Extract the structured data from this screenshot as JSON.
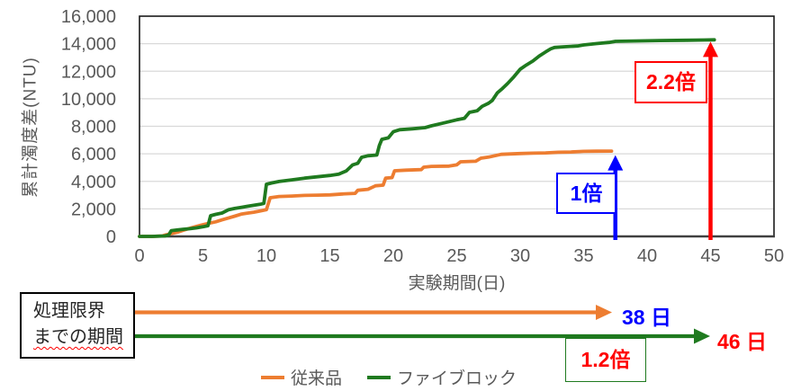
{
  "colors": {
    "orange": "#ED7D31",
    "green": "#1F7A1F",
    "blue": "#0000FF",
    "red": "#FF0000",
    "axis_text": "#595959",
    "grid": "#D9D9D9",
    "axis_line": "#1A1A1A",
    "zero_line": "#404040"
  },
  "chart_data": {
    "type": "line",
    "title": "",
    "xlabel": "実験期間(日)",
    "ylabel": "累計濁度差(NTU)",
    "xlim": [
      0,
      50
    ],
    "ylim": [
      0,
      16000
    ],
    "grid": "horizontal",
    "legend_position": "bottom",
    "x_ticks": [
      "0",
      "5",
      "10",
      "15",
      "20",
      "25",
      "30",
      "35",
      "40",
      "45",
      "50"
    ],
    "y_ticks": [
      {
        "value": 0,
        "label": "0"
      },
      {
        "value": 2000,
        "label": "2,000"
      },
      {
        "value": 4000,
        "label": "4,000"
      },
      {
        "value": 6000,
        "label": "6,000"
      },
      {
        "value": 8000,
        "label": "8,000"
      },
      {
        "value": 10000,
        "label": "10,000"
      },
      {
        "value": 12000,
        "label": "12,000"
      },
      {
        "value": 14000,
        "label": "14,000"
      },
      {
        "value": 16000,
        "label": "16,000"
      }
    ],
    "series": [
      {
        "name": "従来品",
        "color_key": "orange",
        "points": [
          [
            0,
            0
          ],
          [
            1,
            0
          ],
          [
            1.8,
            30
          ],
          [
            2,
            90
          ],
          [
            2.5,
            200
          ],
          [
            3,
            310
          ],
          [
            3.5,
            460
          ],
          [
            4,
            600
          ],
          [
            4.5,
            730
          ],
          [
            5,
            850
          ],
          [
            5.5,
            960
          ],
          [
            6,
            1060
          ],
          [
            6.5,
            1200
          ],
          [
            7,
            1330
          ],
          [
            7.5,
            1470
          ],
          [
            8,
            1610
          ],
          [
            8.5,
            1690
          ],
          [
            9,
            1760
          ],
          [
            9.5,
            1850
          ],
          [
            10,
            1940
          ],
          [
            10.3,
            2810
          ],
          [
            11,
            2900
          ],
          [
            12,
            2930
          ],
          [
            13,
            2980
          ],
          [
            14,
            3000
          ],
          [
            15,
            3020
          ],
          [
            16,
            3080
          ],
          [
            17,
            3130
          ],
          [
            17.2,
            3350
          ],
          [
            18,
            3420
          ],
          [
            18.6,
            3680
          ],
          [
            19.2,
            3720
          ],
          [
            19.4,
            4230
          ],
          [
            19.9,
            4270
          ],
          [
            20.1,
            4770
          ],
          [
            21,
            4810
          ],
          [
            22.2,
            4850
          ],
          [
            22.4,
            5030
          ],
          [
            23,
            5090
          ],
          [
            24.4,
            5110
          ],
          [
            25,
            5200
          ],
          [
            25.3,
            5420
          ],
          [
            26.5,
            5460
          ],
          [
            26.9,
            5680
          ],
          [
            27.5,
            5760
          ],
          [
            28.5,
            5960
          ],
          [
            30,
            6020
          ],
          [
            31,
            6050
          ],
          [
            32,
            6070
          ],
          [
            33,
            6110
          ],
          [
            34,
            6130
          ],
          [
            35,
            6180
          ],
          [
            36,
            6190
          ],
          [
            37.2,
            6200
          ]
        ]
      },
      {
        "name": "ファイブロック",
        "color_key": "green",
        "points": [
          [
            0,
            0
          ],
          [
            1,
            0
          ],
          [
            2,
            30
          ],
          [
            2.3,
            100
          ],
          [
            2.5,
            420
          ],
          [
            3,
            470
          ],
          [
            3.5,
            520
          ],
          [
            4,
            560
          ],
          [
            4.5,
            620
          ],
          [
            5,
            700
          ],
          [
            5.4,
            780
          ],
          [
            5.6,
            1500
          ],
          [
            6,
            1600
          ],
          [
            6.5,
            1700
          ],
          [
            7,
            1930
          ],
          [
            7.5,
            2030
          ],
          [
            8,
            2110
          ],
          [
            8.5,
            2190
          ],
          [
            9,
            2260
          ],
          [
            9.5,
            2330
          ],
          [
            9.8,
            2400
          ],
          [
            10,
            3790
          ],
          [
            10.4,
            3880
          ],
          [
            11,
            3990
          ],
          [
            12,
            4110
          ],
          [
            13,
            4230
          ],
          [
            14,
            4330
          ],
          [
            15,
            4430
          ],
          [
            15.7,
            4520
          ],
          [
            16.3,
            4760
          ],
          [
            16.8,
            5200
          ],
          [
            17.2,
            5310
          ],
          [
            17.5,
            5750
          ],
          [
            18,
            5860
          ],
          [
            18.7,
            5910
          ],
          [
            18.9,
            6600
          ],
          [
            19.1,
            7050
          ],
          [
            19.6,
            7160
          ],
          [
            20,
            7600
          ],
          [
            20.5,
            7750
          ],
          [
            21.5,
            7820
          ],
          [
            22.5,
            7900
          ],
          [
            23,
            8030
          ],
          [
            24,
            8250
          ],
          [
            25,
            8470
          ],
          [
            25.6,
            8580
          ],
          [
            26,
            9010
          ],
          [
            26.6,
            9120
          ],
          [
            27,
            9450
          ],
          [
            27.5,
            9670
          ],
          [
            27.8,
            9880
          ],
          [
            28.2,
            10430
          ],
          [
            28.6,
            10750
          ],
          [
            29,
            11100
          ],
          [
            29.5,
            11600
          ],
          [
            30,
            12150
          ],
          [
            30.5,
            12460
          ],
          [
            31,
            12740
          ],
          [
            31.5,
            13100
          ],
          [
            32,
            13400
          ],
          [
            32.4,
            13620
          ],
          [
            32.7,
            13730
          ],
          [
            33.5,
            13780
          ],
          [
            34.5,
            13830
          ],
          [
            35,
            13910
          ],
          [
            36,
            14010
          ],
          [
            37,
            14090
          ],
          [
            37.5,
            14170
          ],
          [
            39,
            14200
          ],
          [
            41,
            14230
          ],
          [
            43,
            14250
          ],
          [
            44.5,
            14270
          ],
          [
            45.3,
            14280
          ]
        ]
      }
    ]
  },
  "annotations": {
    "arrows": [
      {
        "day": 37.5,
        "tip_value": 5900,
        "color_key": "blue",
        "label": "1倍"
      },
      {
        "day": 45,
        "tip_value": 14150,
        "color_key": "red",
        "label": "2.2倍"
      }
    ]
  },
  "bottom": {
    "period_box": {
      "line1": "処理限界",
      "line2": "までの期間"
    },
    "arrows": [
      {
        "color_key": "orange",
        "y": 347.5,
        "x_start": 150,
        "x_tip": 680,
        "label": "38 日"
      },
      {
        "color_key": "green",
        "y": 374,
        "x_start": 150,
        "x_tip": 789,
        "label": "46 日"
      }
    ],
    "ratio_label": "1.2倍"
  }
}
